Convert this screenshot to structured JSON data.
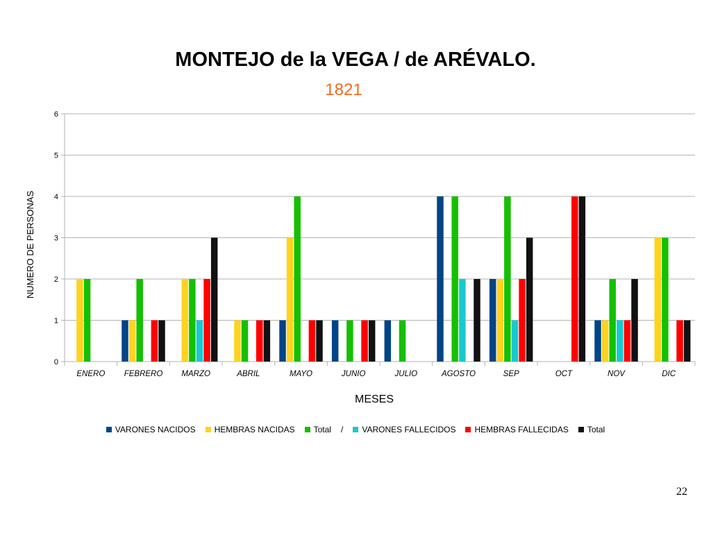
{
  "page": {
    "number": "22"
  },
  "chart_data": {
    "type": "bar",
    "title": "MONTEJO de la VEGA / de ARÉVALO.",
    "subtitle": "1821",
    "subtitle_color": "#f26b1d",
    "xlabel": "MESES",
    "ylabel": "NUMERO DE PERSONAS",
    "ylim": [
      0,
      6
    ],
    "yticks": [
      "0",
      "1",
      "2",
      "3",
      "4",
      "5",
      "6"
    ],
    "grid": true,
    "legend_position": "bottom",
    "legend_separator": "/",
    "categories": [
      "ENERO",
      "FEBRERO",
      "MARZO",
      "ABRIL",
      "MAYO",
      "JUNIO",
      "JULIO",
      "AGOSTO",
      "SEP",
      "OCT",
      "NOV",
      "DIC"
    ],
    "series": [
      {
        "name": "VARONES NACIDOS",
        "color": "#004586",
        "values": [
          0,
          1,
          0,
          0,
          1,
          1,
          1,
          4,
          2,
          0,
          1,
          0
        ]
      },
      {
        "name": "HEMBRAS NACIDAS",
        "color": "#ffd320",
        "values": [
          2,
          1,
          2,
          1,
          3,
          0,
          0,
          0,
          2,
          0,
          1,
          3
        ]
      },
      {
        "name": "Total",
        "color": "#15c000",
        "values": [
          2,
          2,
          2,
          1,
          4,
          1,
          1,
          4,
          4,
          0,
          2,
          3
        ]
      },
      {
        "name": "VARONES FALLECIDOS",
        "color": "#17c9d0",
        "values": [
          0,
          0,
          1,
          0,
          0,
          0,
          0,
          2,
          1,
          0,
          1,
          0
        ]
      },
      {
        "name": "HEMBRAS FALLECIDAS",
        "color": "#ff0000",
        "values": [
          0,
          1,
          2,
          1,
          1,
          1,
          0,
          0,
          2,
          4,
          1,
          1
        ]
      },
      {
        "name": "Total",
        "color": "#111111",
        "values": [
          0,
          1,
          3,
          1,
          1,
          1,
          0,
          2,
          3,
          4,
          2,
          1
        ]
      }
    ]
  }
}
